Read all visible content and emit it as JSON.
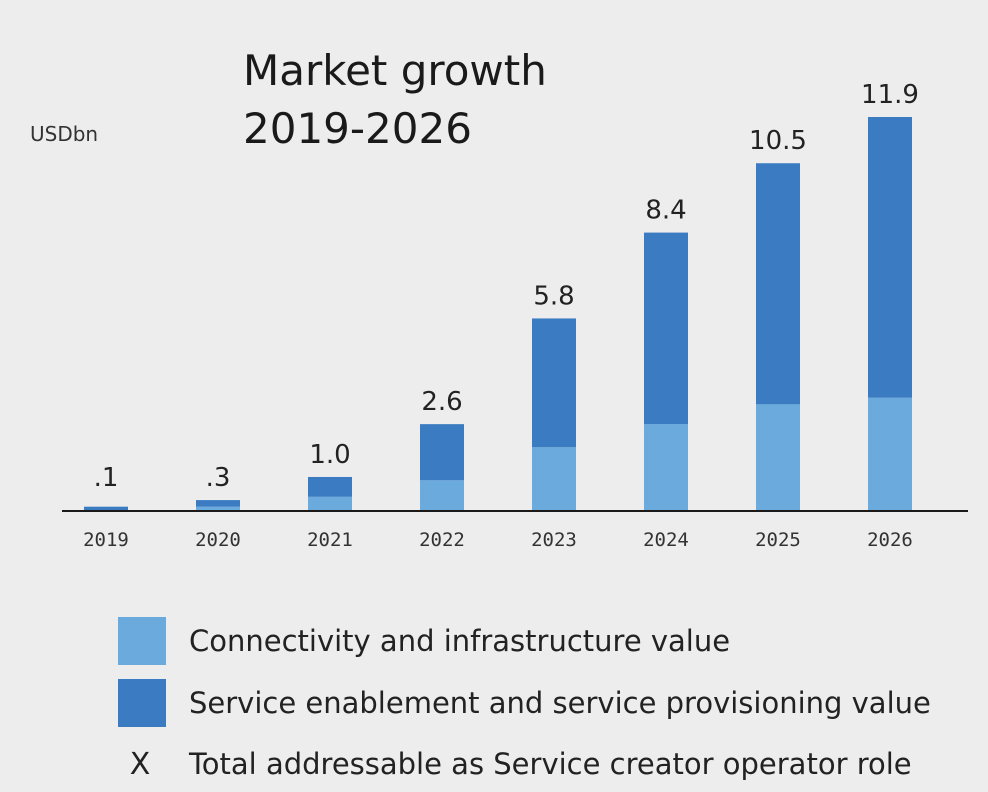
{
  "chart_data": {
    "type": "bar",
    "stacked": true,
    "title_lines": [
      "Market growth",
      "2019-2026"
    ],
    "ylabel": "USDbn",
    "categories": [
      "2019",
      "2020",
      "2021",
      "2022",
      "2023",
      "2024",
      "2025",
      "2026"
    ],
    "series": [
      {
        "name": "Connectivity and infrastructure value",
        "color": "#6aaadc",
        "values": [
          0.0,
          0.1,
          0.4,
          0.9,
          1.9,
          2.6,
          3.2,
          3.4
        ]
      },
      {
        "name": "Service enablement and service provisioning value",
        "color": "#3a7bc1",
        "values": [
          0.1,
          0.2,
          0.6,
          1.7,
          3.9,
          5.8,
          7.3,
          8.5
        ]
      }
    ],
    "total_labels": [
      ".1",
      ".3",
      "1.0",
      "2.6",
      "5.8",
      "8.4",
      "10.5",
      "11.9"
    ],
    "totals": [
      0.1,
      0.3,
      1.0,
      2.6,
      5.8,
      8.4,
      10.5,
      11.9
    ],
    "ylim": [
      0,
      13.2
    ],
    "grid": false,
    "legend_position": "bottom",
    "legend": [
      {
        "marker": "swatch",
        "color": "#6aaadc",
        "label": "Connectivity and infrastructure value"
      },
      {
        "marker": "swatch",
        "color": "#3a7bc1",
        "label": "Service enablement and service provisioning value"
      },
      {
        "marker": "X",
        "label": "Total addressable as Service creator operator role"
      }
    ]
  }
}
